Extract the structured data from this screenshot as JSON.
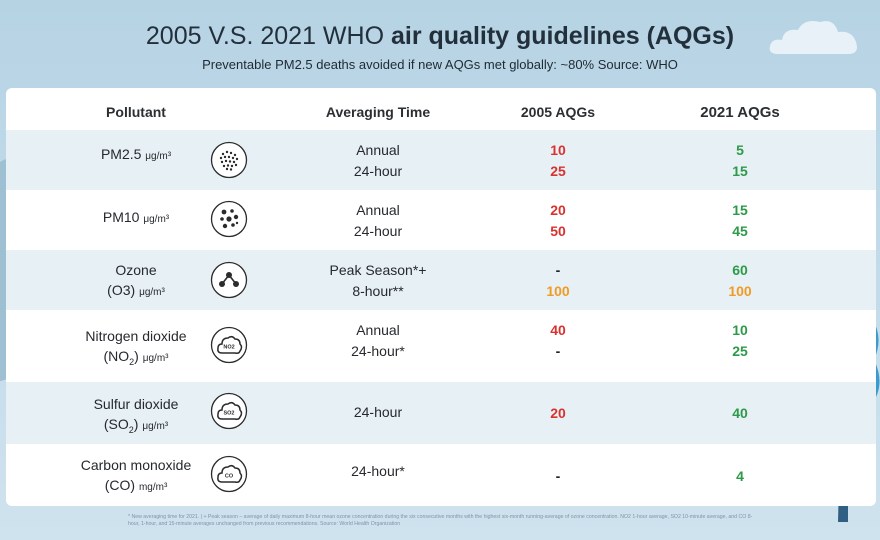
{
  "title": {
    "normal": "2005 V.S. 2021 WHO ",
    "bold": "air quality guidelines (AQGs)"
  },
  "subtitle": "Preventable PM2.5 deaths avoided if new AQGs met globally: ~80% Source: WHO",
  "headers": {
    "pollutant": "Pollutant",
    "averaging": "Averaging Time",
    "aqg2005": "2005 AQGs",
    "aqg2021": "2021 AQGs"
  },
  "colors": {
    "exceeds": "#d8322f",
    "meets": "#2c9a48",
    "ozone_peak": "#f19a24",
    "row_alt": "#e7f0f5"
  },
  "rows": [
    {
      "name": "PM2.5",
      "unit": "μg/m³",
      "icon": "pm25-particles-icon",
      "avg": [
        "Annual",
        "24-hour"
      ],
      "aqg2005": [
        "10",
        "25"
      ],
      "aqg2021": [
        "5",
        "15"
      ]
    },
    {
      "name": "PM10",
      "unit": "μg/m³",
      "icon": "pm10-particles-icon",
      "avg": [
        "Annual",
        "24-hour"
      ],
      "aqg2005": [
        "20",
        "50"
      ],
      "aqg2021": [
        "15",
        "45"
      ]
    },
    {
      "name": "Ozone",
      "formula": "(O3)",
      "unit": "μg/m³",
      "icon": "ozone-molecule-icon",
      "avg": [
        "Peak Season*+",
        "8-hour**"
      ],
      "aqg2005": [
        "-",
        "100"
      ],
      "aqg2021": [
        "60",
        "100"
      ]
    },
    {
      "name": "Nitrogen dioxide",
      "formula_base": "(NO",
      "formula_sub": "2",
      "formula_end": ")",
      "unit": "μg/m³",
      "icon": "no2-cloud-icon",
      "icon_text": "NO2",
      "avg": [
        "Annual",
        "24-hour*"
      ],
      "aqg2005": [
        "40",
        "-"
      ],
      "aqg2021": [
        "10",
        "25"
      ]
    },
    {
      "name": "Sulfur dioxide",
      "formula_base": "(SO",
      "formula_sub": "2",
      "formula_end": ")",
      "unit": "μg/m³",
      "icon": "so2-cloud-icon",
      "icon_text": "SO2",
      "avg": [
        "24-hour"
      ],
      "aqg2005": [
        "20"
      ],
      "aqg2021": [
        "40"
      ]
    },
    {
      "name": "Carbon monoxide",
      "formula": "(CO)",
      "unit": "mg/m³",
      "icon": "co-cloud-icon",
      "icon_text": "CO",
      "avg": [
        "24-hour*"
      ],
      "aqg2005": [
        "-"
      ],
      "aqg2021": [
        "4"
      ]
    }
  ],
  "footnote": "* New averaging time for 2021. | + Peak season – average of daily maximum 8-hour mean ozone concentration during the six consecutive months with the highest six-month running-average of ozone concentration. NO2 1-hour average, SO2 10-minute average, and CO 8-hour, 1-hour, and 15-minute averages unchanged from previous recommendations. Source: World Health Organization"
}
